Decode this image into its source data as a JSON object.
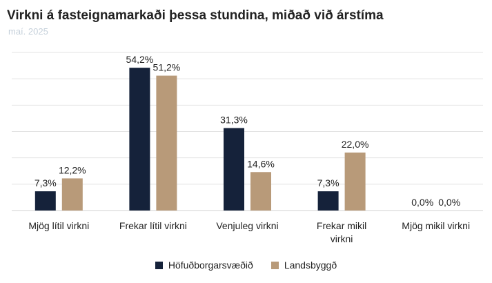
{
  "title": "Virkni á fasteignamarkaði þessa stundina, miðað við árstíma",
  "subtitle": "maí. 2025",
  "colors": {
    "series1": "#15223a",
    "series2": "#b89a79",
    "grid": "#e3e3e3",
    "text": "#222222"
  },
  "chart_data": {
    "type": "bar",
    "title": "Virkni á fasteignamarkaði þessa stundina, miðað við árstíma",
    "subtitle": "maí. 2025",
    "categories": [
      [
        "Mjög lítil virkni"
      ],
      [
        "Frekar lítil virkni"
      ],
      [
        "Venjuleg virkni"
      ],
      [
        "Frekar mikil",
        "virkni"
      ],
      [
        "Mjög mikil virkni"
      ]
    ],
    "series": [
      {
        "name": "Höfuðborgarsvæðið",
        "values": [
          7.3,
          54.2,
          31.3,
          7.3,
          0.0
        ],
        "labels": [
          "7,3%",
          "54,2%",
          "31,3%",
          "7,3%",
          "0,0%"
        ]
      },
      {
        "name": "Landsbyggð",
        "values": [
          12.2,
          51.2,
          14.6,
          22.0,
          0.0
        ],
        "labels": [
          "12,2%",
          "51,2%",
          "14,6%",
          "22,0%",
          "0,0%"
        ]
      }
    ],
    "ylim": [
      0,
      60
    ],
    "grid": true,
    "legend": "bottom-center"
  }
}
